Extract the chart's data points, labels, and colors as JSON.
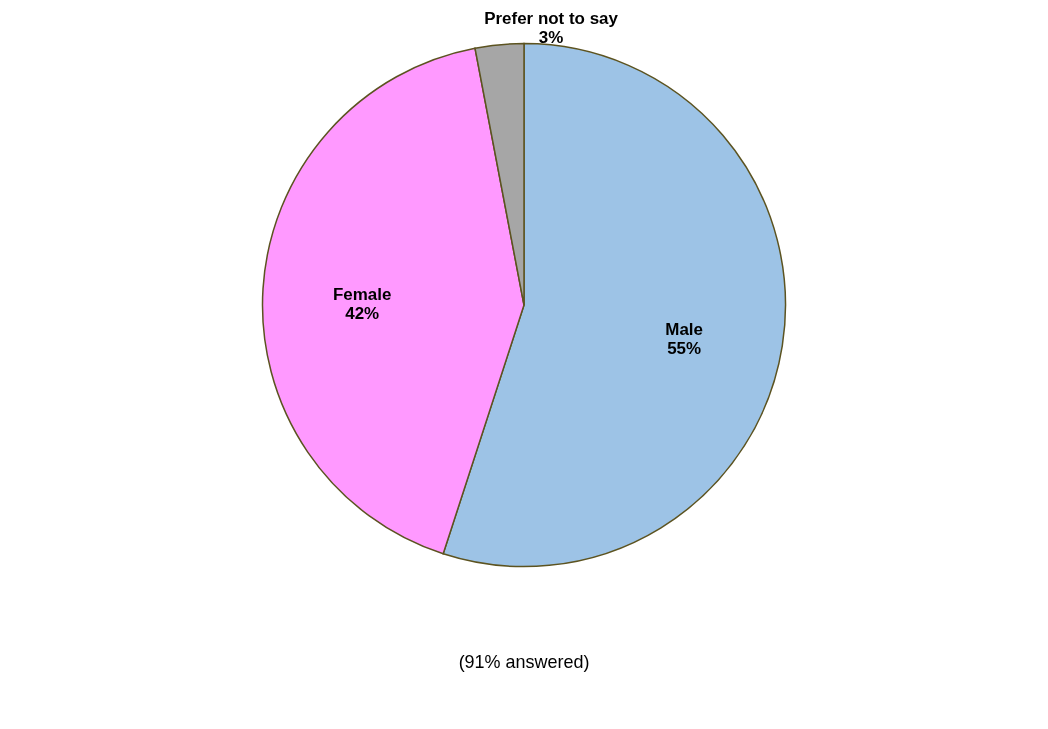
{
  "chart_data": {
    "type": "pie",
    "categories": [
      "Male",
      "Female",
      "Prefer not to say"
    ],
    "values": [
      55,
      42,
      3
    ],
    "colors": [
      "#9dc3e6",
      "#ff99ff",
      "#a6a6a6"
    ],
    "value_labels": [
      "55%",
      "42%",
      "3%"
    ],
    "legend": false,
    "annotations": [
      "(91% answered)"
    ]
  }
}
